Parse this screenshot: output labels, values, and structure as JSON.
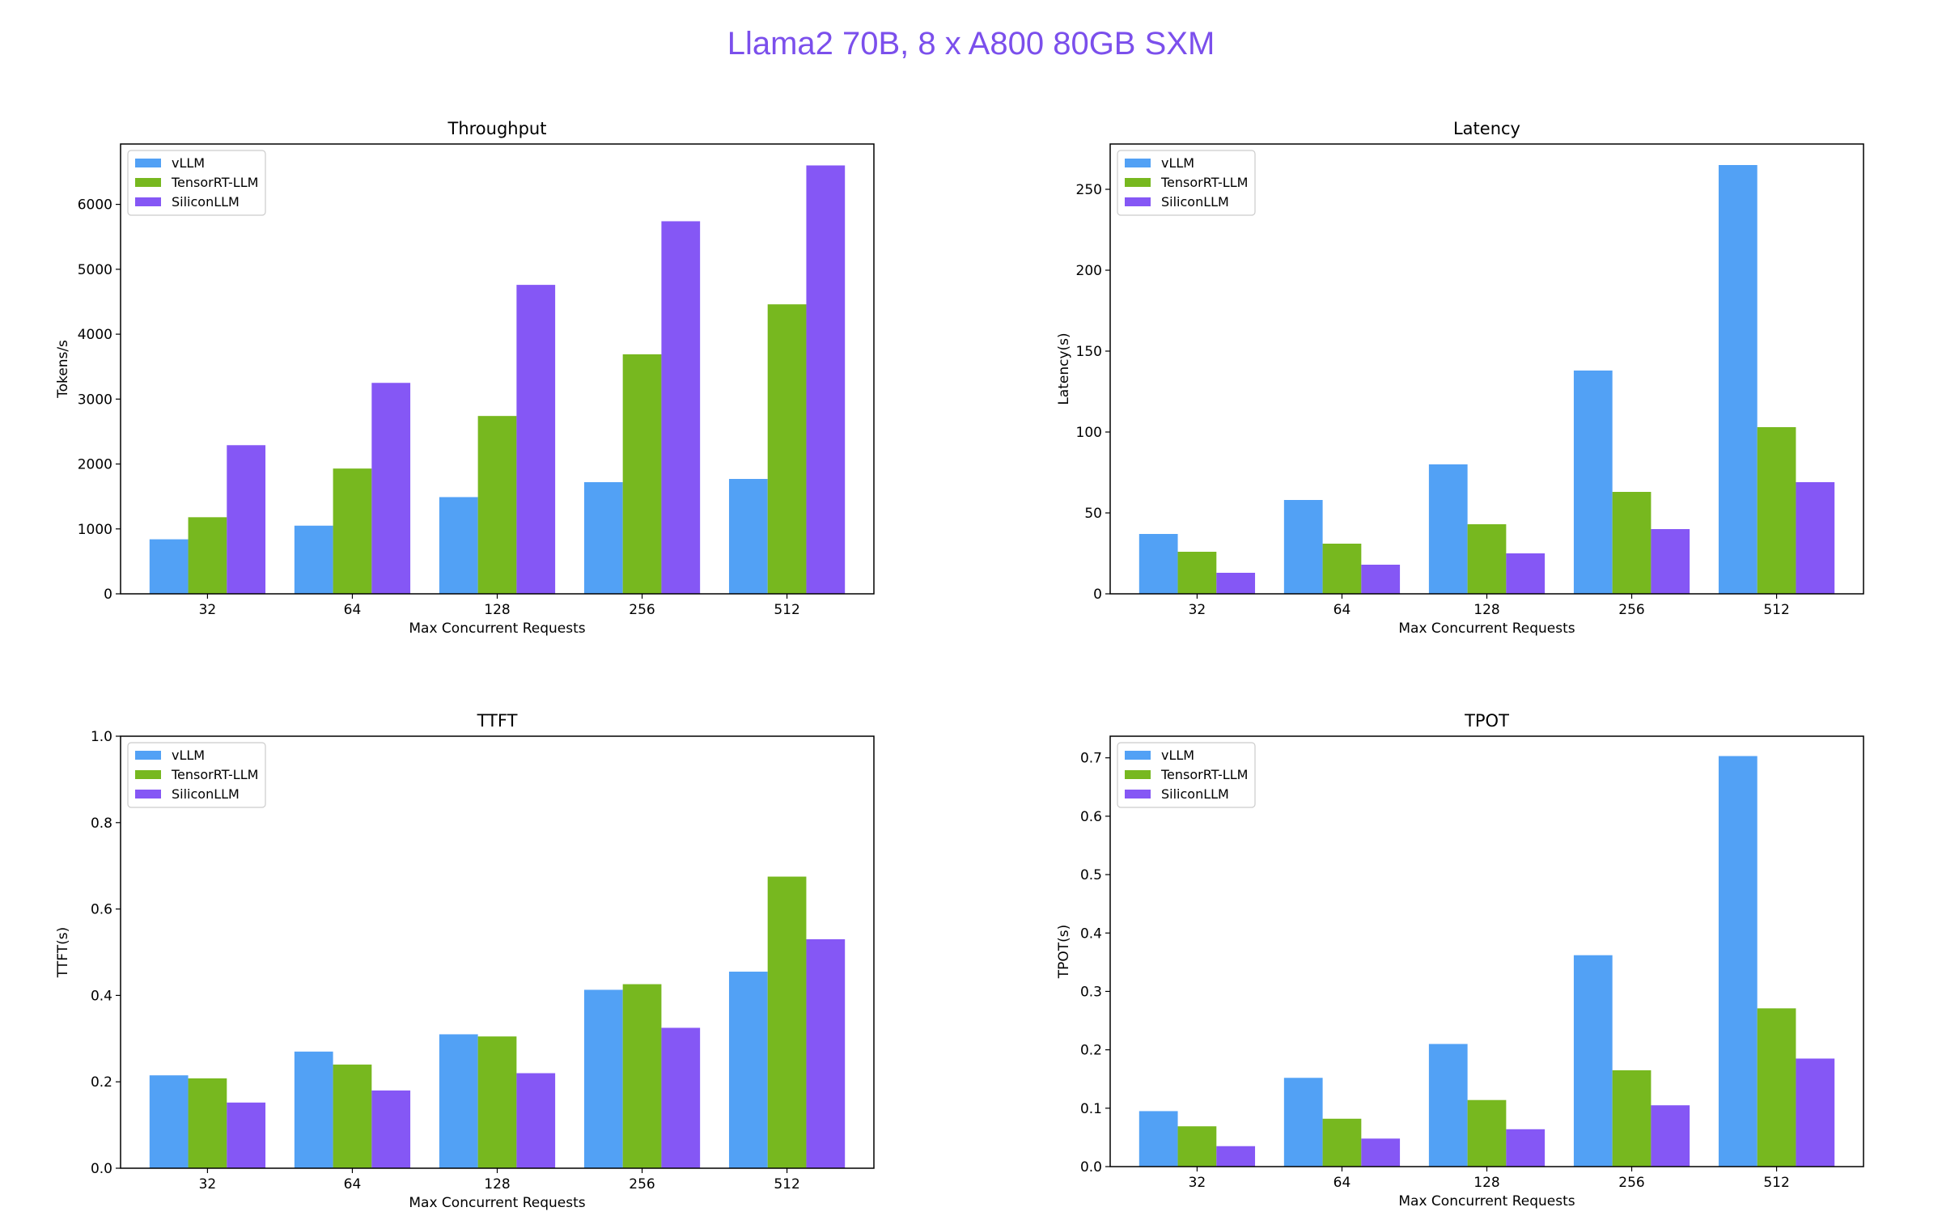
{
  "page_title": "Llama2 70B, 8 x A800 80GB SXM",
  "colors": {
    "vLLM": "#52a1f5",
    "TensorRT-LLM": "#77b81f",
    "SiliconLLM": "#8557f5",
    "title": "#7b4fec"
  },
  "chart_data": [
    {
      "type": "bar",
      "title": "Throughput",
      "xlabel": "Max Concurrent Requests",
      "ylabel": "Tokens/s",
      "categories": [
        "32",
        "64",
        "128",
        "256",
        "512"
      ],
      "ylim": [
        0,
        6930
      ],
      "yticks": [
        0,
        1000,
        2000,
        3000,
        4000,
        5000,
        6000
      ],
      "ytick_labels": [
        "0",
        "1000",
        "2000",
        "3000",
        "4000",
        "5000",
        "6000"
      ],
      "legend_position": "top-left",
      "series": [
        {
          "name": "vLLM",
          "values": [
            840,
            1050,
            1490,
            1720,
            1770
          ]
        },
        {
          "name": "TensorRT-LLM",
          "values": [
            1180,
            1930,
            2740,
            3690,
            4460
          ]
        },
        {
          "name": "SiliconLLM",
          "values": [
            2290,
            3250,
            4760,
            5740,
            6600
          ]
        }
      ]
    },
    {
      "type": "bar",
      "title": "Latency",
      "xlabel": "Max Concurrent Requests",
      "ylabel": "Latency(s)",
      "categories": [
        "32",
        "64",
        "128",
        "256",
        "512"
      ],
      "ylim": [
        0,
        278
      ],
      "yticks": [
        0,
        50,
        100,
        150,
        200,
        250
      ],
      "ytick_labels": [
        "0",
        "50",
        "100",
        "150",
        "200",
        "250"
      ],
      "legend_position": "top-left",
      "series": [
        {
          "name": "vLLM",
          "values": [
            37,
            58,
            80,
            138,
            265
          ]
        },
        {
          "name": "TensorRT-LLM",
          "values": [
            26,
            31,
            43,
            63,
            103
          ]
        },
        {
          "name": "SiliconLLM",
          "values": [
            13,
            18,
            25,
            40,
            69
          ]
        }
      ]
    },
    {
      "type": "bar",
      "title": "TTFT",
      "xlabel": "Max Concurrent Requests",
      "ylabel": "TTFT(s)",
      "categories": [
        "32",
        "64",
        "128",
        "256",
        "512"
      ],
      "ylim": [
        0,
        1.0
      ],
      "yticks": [
        0,
        0.2,
        0.4,
        0.6,
        0.8,
        1.0
      ],
      "ytick_labels": [
        "0.0",
        "0.2",
        "0.4",
        "0.6",
        "0.8",
        "1.0"
      ],
      "legend_position": "top-left",
      "series": [
        {
          "name": "vLLM",
          "values": [
            0.215,
            0.27,
            0.31,
            0.413,
            0.455
          ]
        },
        {
          "name": "TensorRT-LLM",
          "values": [
            0.208,
            0.24,
            0.305,
            0.426,
            0.675
          ]
        },
        {
          "name": "SiliconLLM",
          "values": [
            0.152,
            0.18,
            0.22,
            0.325,
            0.53
          ]
        }
      ]
    },
    {
      "type": "bar",
      "title": "TPOT",
      "xlabel": "Max Concurrent Requests",
      "ylabel": "TPOT(s)",
      "categories": [
        "32",
        "64",
        "128",
        "256",
        "512"
      ],
      "ylim": [
        0,
        0.737
      ],
      "yticks": [
        0,
        0.1,
        0.2,
        0.3,
        0.4,
        0.5,
        0.6,
        0.7
      ],
      "ytick_labels": [
        "0.0",
        "0.1",
        "0.2",
        "0.3",
        "0.4",
        "0.5",
        "0.6",
        "0.7"
      ],
      "legend_position": "top-left",
      "series": [
        {
          "name": "vLLM",
          "values": [
            0.095,
            0.152,
            0.21,
            0.362,
            0.703
          ]
        },
        {
          "name": "TensorRT-LLM",
          "values": [
            0.069,
            0.082,
            0.114,
            0.165,
            0.271
          ]
        },
        {
          "name": "SiliconLLM",
          "values": [
            0.035,
            0.048,
            0.064,
            0.105,
            0.185
          ]
        }
      ]
    }
  ]
}
